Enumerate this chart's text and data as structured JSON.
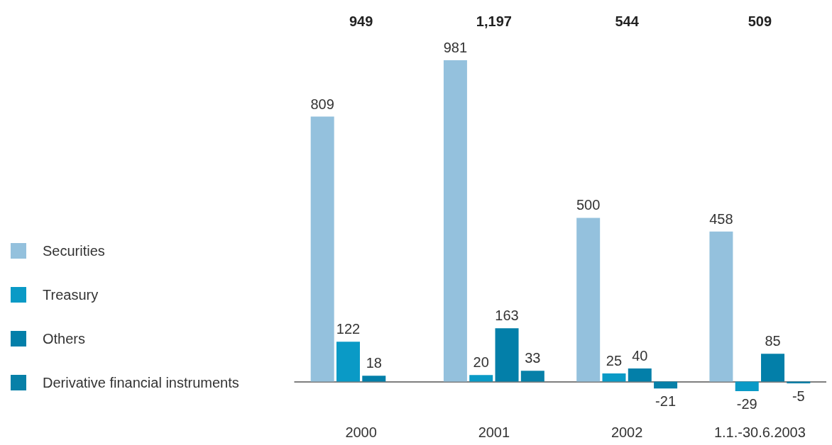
{
  "chart_data": {
    "type": "bar",
    "categories": [
      "2000",
      "2001",
      "2002",
      "1.1.-30.6.2003"
    ],
    "series": [
      {
        "name": "Securities",
        "color": "#94c1dd",
        "values": [
          809,
          981,
          500,
          458
        ]
      },
      {
        "name": "Treasury",
        "color": "#0a9ac6",
        "values": [
          122,
          20,
          25,
          -29
        ]
      },
      {
        "name": "Others",
        "color": "#037fa9",
        "values": [
          18,
          163,
          40,
          85
        ]
      },
      {
        "name": "Derivative financial instruments",
        "color": "#0780a8",
        "values": [
          null,
          33,
          -21,
          -5
        ]
      }
    ],
    "annotations": [
      "949",
      "1,197",
      "544",
      "509"
    ],
    "data_labels": true,
    "legend": "left",
    "grid": false
  }
}
